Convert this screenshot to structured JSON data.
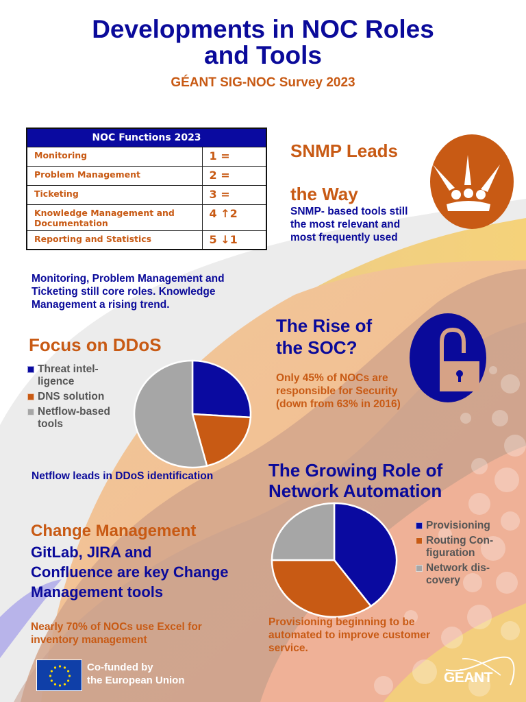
{
  "header": {
    "title_line1": "Developments in NOC Roles",
    "title_line2": "and Tools",
    "subtitle": "GÉANT SIG-NOC Survey 2023"
  },
  "noc_table": {
    "title": "NOC Functions 2023",
    "rows": [
      {
        "function": "Monitoring",
        "rank": "1  ="
      },
      {
        "function": "Problem Management",
        "rank": "2 ="
      },
      {
        "function": "Ticketing",
        "rank": "3 ="
      },
      {
        "function": "Knowledge Management and Documentation",
        "rank": "4 ↑2"
      },
      {
        "function": "Reporting and Statistics",
        "rank": "5 ↓1"
      }
    ],
    "note": "Monitoring, Problem Management and Ticketing still core roles. Knowledge Management a rising trend."
  },
  "snmp": {
    "heading_line1": "SNMP Leads",
    "heading_line2": "the Way",
    "body": "SNMP- based tools still the most relevant and most frequently used",
    "icon": "crown-icon"
  },
  "ddos": {
    "heading": "Focus on DDoS",
    "legend": [
      {
        "label": "Threat intel-ligence",
        "color": "#0a0aa0"
      },
      {
        "label": "DNS solution",
        "color": "#c85a14"
      },
      {
        "label": "Netflow-based tools",
        "color": "#a6a6a6"
      }
    ],
    "note": "Netflow leads in DDoS identification"
  },
  "soc": {
    "heading_line1": "The Rise of",
    "heading_line2": "the SOC?",
    "body": "Only 45% of NOCs are responsible for Security (down from 63% in 2016)",
    "icon": "unlocked-padlock-icon"
  },
  "automation": {
    "heading_line1": "The Growing Role of",
    "heading_line2": "Network Automation",
    "legend": [
      {
        "label": "Provisioning",
        "color": "#0a0aa0"
      },
      {
        "label": "Routing Con-figuration",
        "color": "#c85a14"
      },
      {
        "label": "Network dis-covery",
        "color": "#a6a6a6"
      }
    ],
    "note": "Provisioning beginning to be automated to improve customer service."
  },
  "change_mgmt": {
    "heading": "Change Management",
    "body": "GitLab, JIRA and Confluence are key Change Management tools",
    "note": "Nearly 70% of NOCs use Excel for inventory management"
  },
  "footer": {
    "eu_line1": "Co-funded by",
    "eu_line2": "the European Union",
    "geant_logo": "GÉANT"
  },
  "colors": {
    "navy": "#0a0a9a",
    "orange": "#c85a14",
    "gray": "#a6a6a6"
  },
  "chart_data": [
    {
      "type": "pie",
      "title": "Focus on DDoS",
      "categories": [
        "Threat intelligence",
        "DNS solution",
        "Netflow-based tools"
      ],
      "values": [
        26,
        20,
        54
      ],
      "colors": [
        "#0a0aa0",
        "#c85a14",
        "#a6a6a6"
      ],
      "legend_position": "left",
      "note": "Netflow leads in DDoS identification"
    },
    {
      "type": "pie",
      "title": "The Growing Role of Network Automation",
      "categories": [
        "Provisioning",
        "Routing Configuration",
        "Network discovery"
      ],
      "values": [
        40,
        35,
        25
      ],
      "colors": [
        "#0a0aa0",
        "#c85a14",
        "#a6a6a6"
      ],
      "legend_position": "right",
      "note": "Provisioning beginning to be automated to improve customer service."
    }
  ]
}
